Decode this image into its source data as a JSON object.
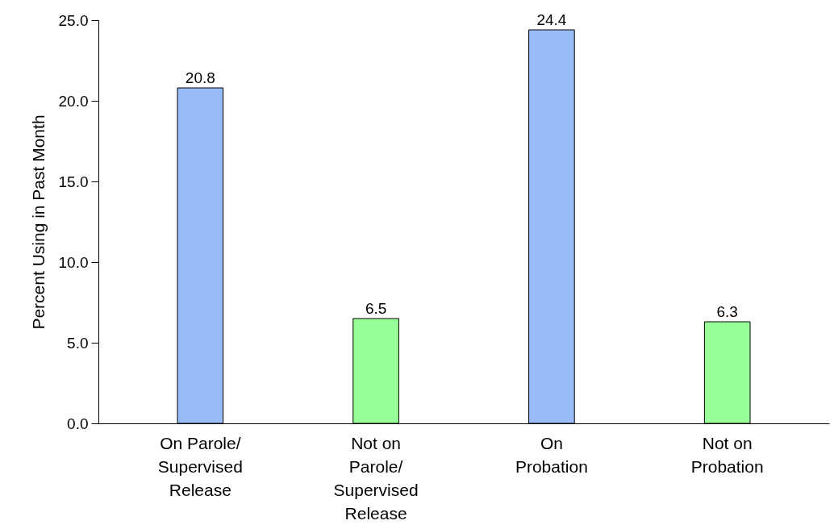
{
  "chart_data": {
    "type": "bar",
    "ylabel": "Percent Using in Past Month",
    "categories": [
      "On Parole/ Supervised Release",
      "Not on Parole/ Supervised Release",
      "On Probation",
      "Not on Probation"
    ],
    "values": [
      20.8,
      6.5,
      24.4,
      6.3
    ],
    "colors": [
      "#99bbf8",
      "#99ff99",
      "#99bbf8",
      "#99ff99"
    ],
    "ylim": [
      0,
      25
    ],
    "yticks": [
      {
        "value": 0,
        "label": "0.0"
      },
      {
        "value": 5,
        "label": "5.0"
      },
      {
        "value": 10,
        "label": "10.0"
      },
      {
        "value": 15,
        "label": "15.0"
      },
      {
        "value": 20,
        "label": "20.0"
      },
      {
        "value": 25,
        "label": "25.0"
      }
    ],
    "data_labels": true,
    "grid": false,
    "legend": false
  }
}
